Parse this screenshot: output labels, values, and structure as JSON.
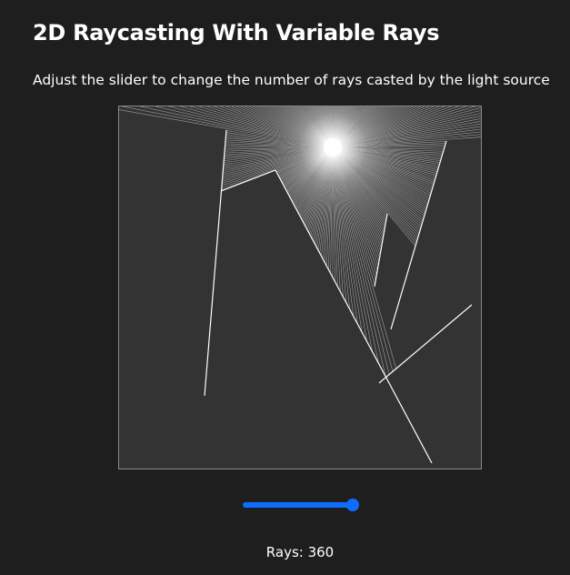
{
  "page": {
    "title": "2D Raycasting With Variable Rays",
    "subtitle": "Adjust the slider to change the number of rays casted by the light source"
  },
  "scene": {
    "background_color": "#333333",
    "ray_color": "#ffffff",
    "light_color": "#ffffff"
  },
  "slider": {
    "accent_color": "#0d6efd",
    "value_fraction": 1.0
  },
  "rays": {
    "label": "Rays: 360",
    "count": 360
  }
}
